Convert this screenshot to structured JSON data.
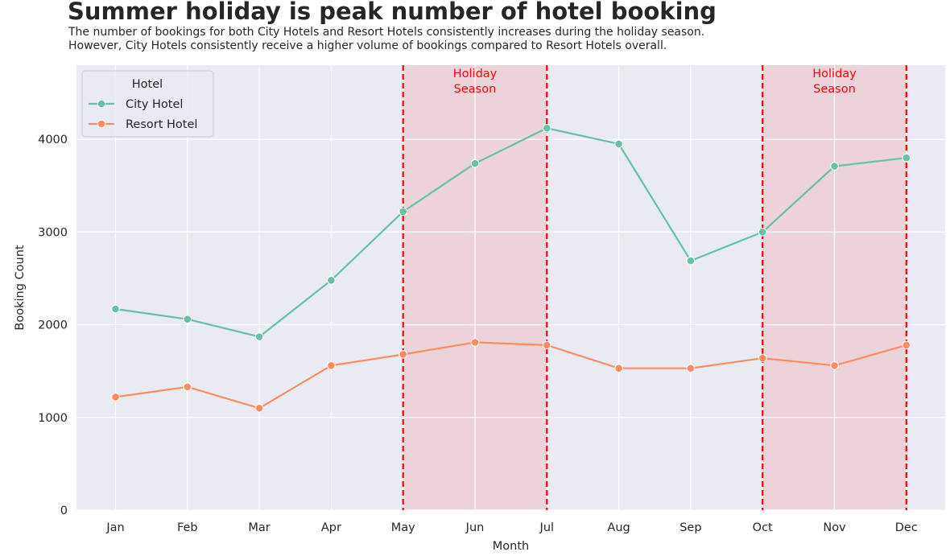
{
  "title": "Summer holiday is peak number of hotel booking",
  "subtitle": [
    "The number of bookings for both City Hotels and Resort Hotels consistently increases during the holiday season.",
    "However, City Hotels consistently receive a higher volume of bookings compared to Resort Hotels overall."
  ],
  "chart_data": {
    "type": "line",
    "categories": [
      "Jan",
      "Feb",
      "Mar",
      "Apr",
      "May",
      "Jun",
      "Jul",
      "Aug",
      "Sep",
      "Oct",
      "Nov",
      "Dec"
    ],
    "series": [
      {
        "name": "City Hotel",
        "color": "#66c2a5",
        "values": [
          2170,
          2060,
          1870,
          2480,
          3220,
          3740,
          4120,
          3950,
          2690,
          3000,
          3710,
          3800
        ]
      },
      {
        "name": "Resort Hotel",
        "color": "#fc8d62",
        "values": [
          1220,
          1330,
          1100,
          1560,
          1680,
          1810,
          1780,
          1530,
          1530,
          1640,
          1560,
          1780
        ]
      }
    ],
    "xlabel": "Month",
    "ylabel": "Booking Count",
    "ylim": [
      0,
      4800
    ],
    "yticks": [
      0,
      1000,
      2000,
      3000,
      4000
    ],
    "legend": {
      "title": "Hotel",
      "placement": "top-left"
    },
    "grid": true,
    "background": "#eaeaf2",
    "annotations": [
      {
        "label_lines": [
          "Holiday",
          "Season"
        ],
        "from": "May",
        "to": "Jul",
        "color": "#ff0000"
      },
      {
        "label_lines": [
          "Holiday",
          "Season"
        ],
        "from": "Oct",
        "to": "Dec",
        "color": "#ff0000"
      }
    ]
  }
}
